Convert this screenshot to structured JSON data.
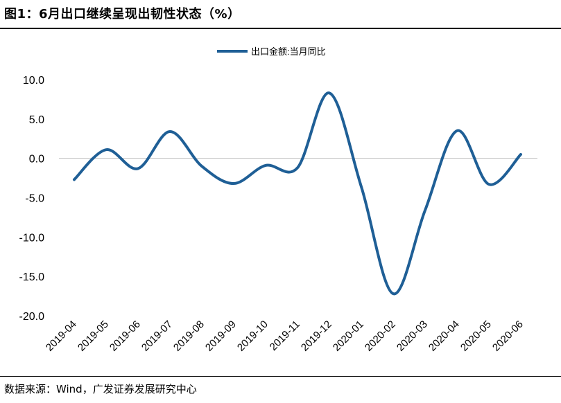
{
  "figure": {
    "title": "图1：6月出口继续呈现出韧性状态（%）",
    "source": "数据来源：Wind，广发证券发展研究中心"
  },
  "chart_data": {
    "type": "line",
    "categories": [
      "2019-04",
      "2019-05",
      "2019-06",
      "2019-07",
      "2019-08",
      "2019-09",
      "2019-10",
      "2019-11",
      "2019-12",
      "2020-01",
      "2020-02",
      "2020-03",
      "2020-04",
      "2020-05",
      "2020-06"
    ],
    "series": [
      {
        "name": "出口金额:当月同比",
        "values": [
          -2.7,
          1.1,
          -1.3,
          3.4,
          -1.0,
          -3.2,
          -0.9,
          -1.2,
          8.3,
          -3.6,
          -17.2,
          -6.6,
          3.5,
          -3.3,
          0.5
        ],
        "color": "#1f5f96"
      }
    ],
    "yticks": [
      "10.0",
      "5.0",
      "0.0",
      "-5.0",
      "-10.0",
      "-15.0",
      "-20.0"
    ],
    "ylim": [
      -20,
      10
    ],
    "legend_position": "top-center",
    "grid": false,
    "zero_line": true,
    "xlabel": "",
    "ylabel": ""
  }
}
